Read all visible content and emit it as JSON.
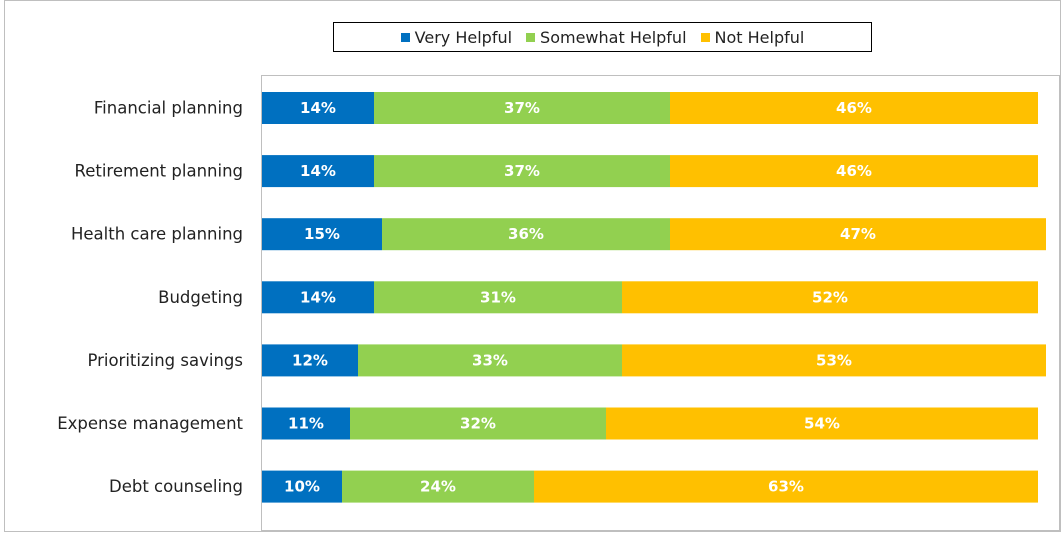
{
  "chart_data": {
    "type": "bar",
    "orientation": "horizontal",
    "stacked": true,
    "categories": [
      "Financial planning",
      "Retirement planning",
      "Health care planning",
      "Budgeting",
      "Prioritizing savings",
      "Expense management",
      "Debt counseling"
    ],
    "series": [
      {
        "name": "Very Helpful",
        "color": "#0070c0",
        "values": [
          14,
          14,
          15,
          14,
          12,
          11,
          10
        ]
      },
      {
        "name": "Somewhat Helpful",
        "color": "#92d050",
        "values": [
          37,
          37,
          36,
          31,
          33,
          32,
          24
        ]
      },
      {
        "name": "Not Helpful",
        "color": "#ffc000",
        "values": [
          46,
          46,
          47,
          52,
          53,
          54,
          63
        ]
      }
    ],
    "data_labels": [
      [
        "14%",
        "14%",
        "15%",
        "14%",
        "12%",
        "11%",
        "10%"
      ],
      [
        "37%",
        "37%",
        "36%",
        "31%",
        "33%",
        "32%",
        "24%"
      ],
      [
        "46%",
        "46%",
        "47%",
        "52%",
        "53%",
        "54%",
        "63%"
      ]
    ],
    "xlim": [
      0,
      100
    ],
    "unit": "%",
    "grid": false,
    "legend_position": "top-center"
  }
}
